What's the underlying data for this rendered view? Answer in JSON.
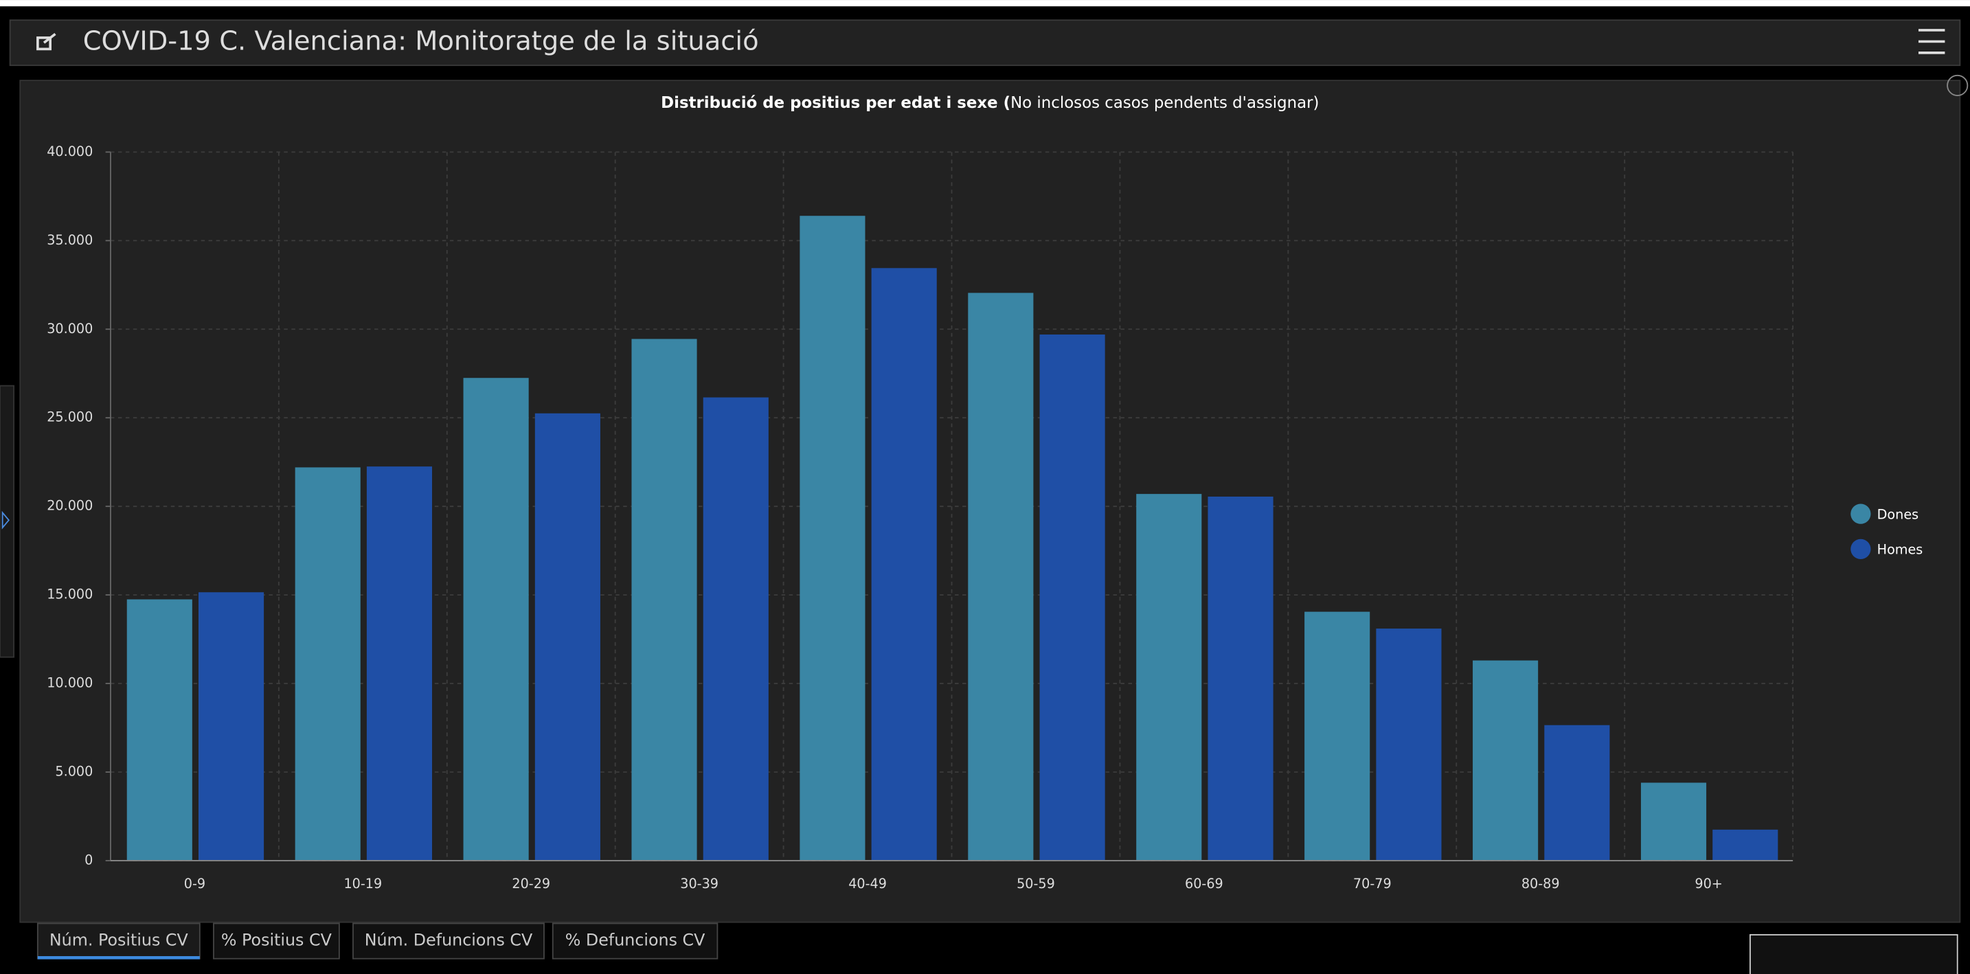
{
  "header": {
    "title": "COVID-19 C. Valenciana: Monitoratge de la situació"
  },
  "chart_data": {
    "type": "bar",
    "title": "Distribució de positius per edat i sexe (",
    "subtitle": "No inclosos casos pendents d'assignar)",
    "categories": [
      "0-9",
      "10-19",
      "20-29",
      "30-39",
      "40-49",
      "50-59",
      "60-69",
      "70-79",
      "80-89",
      "90+"
    ],
    "series": [
      {
        "name": "Dones",
        "color": "#3a86a5",
        "values": [
          14750,
          22200,
          27250,
          29450,
          36400,
          32050,
          20700,
          14050,
          11300,
          4400
        ]
      },
      {
        "name": "Homes",
        "color": "#1f4fa6",
        "values": [
          15150,
          22250,
          25250,
          26150,
          33450,
          29700,
          20550,
          13100,
          7650,
          1750
        ]
      }
    ],
    "ylim": [
      0,
      40000
    ],
    "yticks": [
      0,
      {
        "value": 5000,
        "label": "5.000"
      },
      {
        "value": 10000,
        "label": "10.000"
      },
      {
        "value": 15000,
        "label": "15.000"
      },
      {
        "value": 20000,
        "label": "20.000"
      },
      {
        "value": 25000,
        "label": "25.000"
      },
      {
        "value": 30000,
        "label": "30.000"
      },
      {
        "value": 35000,
        "label": "35.000"
      },
      {
        "value": 40000,
        "label": "40.000"
      }
    ],
    "grid": true,
    "legend": "right"
  },
  "tabs": [
    "Núm. Positius CV",
    "% Positius CV",
    "Núm. Defuncions CV",
    "% Defuncions CV"
  ]
}
